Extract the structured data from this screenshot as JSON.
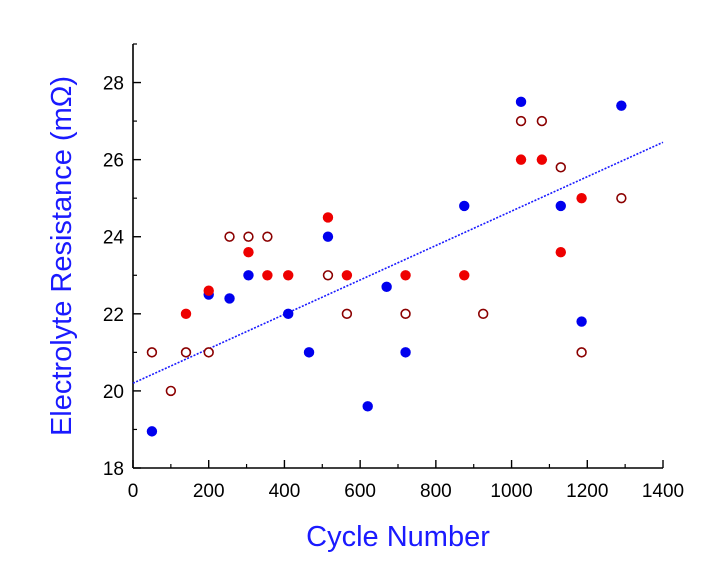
{
  "chart_data": {
    "type": "scatter",
    "xlabel": "Cycle Number",
    "ylabel": "Electrolyte Resistance (mΩ)",
    "label_color": "#1a1aff",
    "xlim": [
      0,
      1400
    ],
    "ylim": [
      18,
      29
    ],
    "xticks": [
      0,
      200,
      400,
      600,
      800,
      1000,
      1200,
      1400
    ],
    "yticks": [
      18,
      20,
      22,
      24,
      26,
      28
    ],
    "x_minor_step": 100,
    "y_minor_step": 1,
    "grid": false,
    "legend": "none",
    "series": [
      {
        "style": "filled",
        "color": "#0000ee",
        "points": [
          [
            50,
            18.95
          ],
          [
            200,
            22.5
          ],
          [
            255,
            22.4
          ],
          [
            305,
            23.0
          ],
          [
            410,
            22.0
          ],
          [
            465,
            21.0
          ],
          [
            515,
            24.0
          ],
          [
            620,
            19.6
          ],
          [
            670,
            22.7
          ],
          [
            720,
            21.0
          ],
          [
            875,
            24.8
          ],
          [
            1025,
            27.5
          ],
          [
            1130,
            24.8
          ],
          [
            1185,
            21.8
          ],
          [
            1290,
            27.4
          ]
        ]
      },
      {
        "style": "filled",
        "color": "#ee0000",
        "points": [
          [
            140,
            22.0
          ],
          [
            200,
            22.6
          ],
          [
            305,
            23.6
          ],
          [
            355,
            23.0
          ],
          [
            410,
            23.0
          ],
          [
            515,
            24.5
          ],
          [
            565,
            23.0
          ],
          [
            720,
            23.0
          ],
          [
            875,
            23.0
          ],
          [
            1025,
            26.0
          ],
          [
            1080,
            26.0
          ],
          [
            1130,
            23.6
          ],
          [
            1185,
            25.0
          ]
        ]
      },
      {
        "style": "open",
        "color": "#8b0000",
        "points": [
          [
            50,
            21.0
          ],
          [
            100,
            20.0
          ],
          [
            140,
            21.0
          ],
          [
            200,
            21.0
          ],
          [
            255,
            24.0
          ],
          [
            305,
            24.0
          ],
          [
            355,
            24.0
          ],
          [
            515,
            23.0
          ],
          [
            565,
            22.0
          ],
          [
            720,
            22.0
          ],
          [
            925,
            22.0
          ],
          [
            1025,
            27.0
          ],
          [
            1080,
            27.0
          ],
          [
            1130,
            25.8
          ],
          [
            1185,
            21.0
          ],
          [
            1290,
            25.0
          ]
        ]
      }
    ],
    "trendline": {
      "style": "dotted",
      "color": "#1a1aff",
      "x": [
        0,
        1400
      ],
      "y": [
        20.2,
        26.45
      ]
    }
  }
}
